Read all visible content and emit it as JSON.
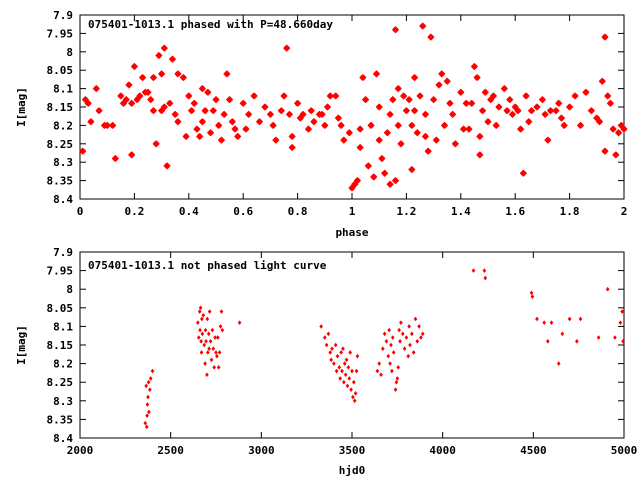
{
  "chart_data": [
    {
      "type": "scatter",
      "title": "075401-1013.1 phased with P=48.660day",
      "xlabel": "phase",
      "ylabel": "I[mag]",
      "xlim": [
        0,
        2
      ],
      "ylim": [
        8.4,
        7.9
      ],
      "y_inverted": true,
      "grid": false,
      "color": "#ff0000",
      "marker": "star",
      "x_ticks": [
        "0",
        "0.2",
        "0.4",
        "0.6",
        "0.8",
        "1",
        "1.2",
        "1.4",
        "1.6",
        "1.8",
        "2"
      ],
      "y_ticks": [
        "7.9",
        "7.95",
        "8",
        "8.05",
        "8.1",
        "8.15",
        "8.2",
        "8.25",
        "8.3",
        "8.35",
        "8.4"
      ],
      "points": [
        [
          0.01,
          8.27
        ],
        [
          0.02,
          8.13
        ],
        [
          0.03,
          8.14
        ],
        [
          0.04,
          8.19
        ],
        [
          0.06,
          8.1
        ],
        [
          0.07,
          8.16
        ],
        [
          0.09,
          8.2
        ],
        [
          0.1,
          8.2
        ],
        [
          0.12,
          8.2
        ],
        [
          0.13,
          8.29
        ],
        [
          0.15,
          8.12
        ],
        [
          0.16,
          8.14
        ],
        [
          0.17,
          8.13
        ],
        [
          0.18,
          8.09
        ],
        [
          0.19,
          8.14
        ],
        [
          0.19,
          8.28
        ],
        [
          0.2,
          8.04
        ],
        [
          0.21,
          8.13
        ],
        [
          0.22,
          8.12
        ],
        [
          0.23,
          8.07
        ],
        [
          0.24,
          8.11
        ],
        [
          0.25,
          8.11
        ],
        [
          0.26,
          8.13
        ],
        [
          0.27,
          8.07
        ],
        [
          0.27,
          8.16
        ],
        [
          0.28,
          8.25
        ],
        [
          0.29,
          8.01
        ],
        [
          0.3,
          8.06
        ],
        [
          0.3,
          8.16
        ],
        [
          0.31,
          7.99
        ],
        [
          0.31,
          8.15
        ],
        [
          0.32,
          8.31
        ],
        [
          0.33,
          8.14
        ],
        [
          0.34,
          8.02
        ],
        [
          0.35,
          8.17
        ],
        [
          0.36,
          8.06
        ],
        [
          0.36,
          8.19
        ],
        [
          0.38,
          8.07
        ],
        [
          0.39,
          8.23
        ],
        [
          0.4,
          8.12
        ],
        [
          0.41,
          8.16
        ],
        [
          0.42,
          8.14
        ],
        [
          0.43,
          8.21
        ],
        [
          0.44,
          8.23
        ],
        [
          0.45,
          8.1
        ],
        [
          0.45,
          8.19
        ],
        [
          0.46,
          8.16
        ],
        [
          0.47,
          8.11
        ],
        [
          0.48,
          8.22
        ],
        [
          0.49,
          8.16
        ],
        [
          0.5,
          8.13
        ],
        [
          0.51,
          8.2
        ],
        [
          0.52,
          8.24
        ],
        [
          0.53,
          8.17
        ],
        [
          0.54,
          8.06
        ],
        [
          0.55,
          8.13
        ],
        [
          0.56,
          8.19
        ],
        [
          0.57,
          8.21
        ],
        [
          0.58,
          8.23
        ],
        [
          0.6,
          8.14
        ],
        [
          0.61,
          8.21
        ],
        [
          0.62,
          8.17
        ],
        [
          0.64,
          8.12
        ],
        [
          0.66,
          8.19
        ],
        [
          0.68,
          8.15
        ],
        [
          0.7,
          8.17
        ],
        [
          0.71,
          8.2
        ],
        [
          0.72,
          8.24
        ],
        [
          0.74,
          8.16
        ],
        [
          0.75,
          8.12
        ],
        [
          0.76,
          7.99
        ],
        [
          0.77,
          8.17
        ],
        [
          0.78,
          8.23
        ],
        [
          0.78,
          8.26
        ],
        [
          0.8,
          8.14
        ],
        [
          0.81,
          8.18
        ],
        [
          0.82,
          8.17
        ],
        [
          0.84,
          8.21
        ],
        [
          0.85,
          8.16
        ],
        [
          0.86,
          8.19
        ],
        [
          0.88,
          8.17
        ],
        [
          0.89,
          8.17
        ],
        [
          0.9,
          8.2
        ],
        [
          0.91,
          8.15
        ],
        [
          0.92,
          8.12
        ],
        [
          0.94,
          8.12
        ],
        [
          0.95,
          8.18
        ],
        [
          0.96,
          8.2
        ],
        [
          0.97,
          8.24
        ],
        [
          0.99,
          8.22
        ],
        [
          1.0,
          8.37
        ],
        [
          1.01,
          8.36
        ],
        [
          1.02,
          8.35
        ],
        [
          1.03,
          8.21
        ],
        [
          1.03,
          8.26
        ],
        [
          1.04,
          8.07
        ],
        [
          1.05,
          8.13
        ],
        [
          1.06,
          8.31
        ],
        [
          1.07,
          8.2
        ],
        [
          1.08,
          8.34
        ],
        [
          1.09,
          8.06
        ],
        [
          1.1,
          8.15
        ],
        [
          1.1,
          8.24
        ],
        [
          1.11,
          8.29
        ],
        [
          1.12,
          8.33
        ],
        [
          1.13,
          8.22
        ],
        [
          1.14,
          8.17
        ],
        [
          1.14,
          8.36
        ],
        [
          1.15,
          8.13
        ],
        [
          1.16,
          7.94
        ],
        [
          1.16,
          8.35
        ],
        [
          1.17,
          8.1
        ],
        [
          1.17,
          8.2
        ],
        [
          1.18,
          8.25
        ],
        [
          1.19,
          8.12
        ],
        [
          1.2,
          8.16
        ],
        [
          1.21,
          8.13
        ],
        [
          1.22,
          8.2
        ],
        [
          1.22,
          8.32
        ],
        [
          1.23,
          8.07
        ],
        [
          1.23,
          8.16
        ],
        [
          1.24,
          8.22
        ],
        [
          1.25,
          8.12
        ],
        [
          1.26,
          7.93
        ],
        [
          1.27,
          8.17
        ],
        [
          1.27,
          8.23
        ],
        [
          1.28,
          8.27
        ],
        [
          1.29,
          7.96
        ],
        [
          1.3,
          8.13
        ],
        [
          1.31,
          8.24
        ],
        [
          1.32,
          8.09
        ],
        [
          1.33,
          8.06
        ],
        [
          1.34,
          8.2
        ],
        [
          1.35,
          8.08
        ],
        [
          1.36,
          8.14
        ],
        [
          1.37,
          8.17
        ],
        [
          1.38,
          8.25
        ],
        [
          1.4,
          8.11
        ],
        [
          1.41,
          8.21
        ],
        [
          1.42,
          8.14
        ],
        [
          1.43,
          8.21
        ],
        [
          1.44,
          8.14
        ],
        [
          1.45,
          8.04
        ],
        [
          1.46,
          8.07
        ],
        [
          1.47,
          8.28
        ],
        [
          1.47,
          8.23
        ],
        [
          1.48,
          8.16
        ],
        [
          1.49,
          8.11
        ],
        [
          1.5,
          8.19
        ],
        [
          1.51,
          8.13
        ],
        [
          1.52,
          8.12
        ],
        [
          1.53,
          8.2
        ],
        [
          1.54,
          8.15
        ],
        [
          1.56,
          8.1
        ],
        [
          1.57,
          8.16
        ],
        [
          1.58,
          8.13
        ],
        [
          1.59,
          8.17
        ],
        [
          1.6,
          8.15
        ],
        [
          1.61,
          8.16
        ],
        [
          1.62,
          8.21
        ],
        [
          1.63,
          8.33
        ],
        [
          1.64,
          8.12
        ],
        [
          1.65,
          8.19
        ],
        [
          1.66,
          8.16
        ],
        [
          1.68,
          8.15
        ],
        [
          1.7,
          8.13
        ],
        [
          1.71,
          8.17
        ],
        [
          1.72,
          8.24
        ],
        [
          1.73,
          8.16
        ],
        [
          1.75,
          8.16
        ],
        [
          1.76,
          8.14
        ],
        [
          1.77,
          8.18
        ],
        [
          1.78,
          8.2
        ],
        [
          1.8,
          8.15
        ],
        [
          1.82,
          8.12
        ],
        [
          1.84,
          8.2
        ],
        [
          1.86,
          8.11
        ],
        [
          1.88,
          8.16
        ],
        [
          1.9,
          8.18
        ],
        [
          1.91,
          8.19
        ],
        [
          1.92,
          8.08
        ],
        [
          1.93,
          7.96
        ],
        [
          1.93,
          8.27
        ],
        [
          1.94,
          8.12
        ],
        [
          1.95,
          8.14
        ],
        [
          1.96,
          8.21
        ],
        [
          1.97,
          8.28
        ],
        [
          1.98,
          8.22
        ],
        [
          1.99,
          8.2
        ],
        [
          2.0,
          8.21
        ]
      ]
    },
    {
      "type": "scatter",
      "title": "075401-1013.1 not phased light curve",
      "xlabel": "hjd0",
      "ylabel": "I[mag]",
      "xlim": [
        2000,
        5000
      ],
      "ylim": [
        8.4,
        7.9
      ],
      "y_inverted": true,
      "grid": false,
      "color": "#ff0000",
      "marker": "diamond",
      "x_ticks": [
        "2000",
        "2500",
        "3000",
        "3500",
        "4000",
        "4500",
        "5000"
      ],
      "y_ticks": [
        "7.9",
        "7.95",
        "8",
        "8.05",
        "8.1",
        "8.15",
        "8.2",
        "8.25",
        "8.3",
        "8.35",
        "8.4"
      ],
      "points": [
        [
          2360,
          8.36
        ],
        [
          2365,
          8.26
        ],
        [
          2368,
          8.37
        ],
        [
          2370,
          8.34
        ],
        [
          2372,
          8.31
        ],
        [
          2375,
          8.29
        ],
        [
          2378,
          8.25
        ],
        [
          2380,
          8.33
        ],
        [
          2385,
          8.27
        ],
        [
          2390,
          8.24
        ],
        [
          2400,
          8.22
        ],
        [
          2650,
          8.09
        ],
        [
          2655,
          8.13
        ],
        [
          2660,
          8.06
        ],
        [
          2662,
          8.11
        ],
        [
          2665,
          8.05
        ],
        [
          2668,
          8.14
        ],
        [
          2670,
          8.17
        ],
        [
          2672,
          8.08
        ],
        [
          2675,
          8.12
        ],
        [
          2680,
          8.07
        ],
        [
          2685,
          8.15
        ],
        [
          2690,
          8.2
        ],
        [
          2692,
          8.11
        ],
        [
          2695,
          8.14
        ],
        [
          2700,
          8.23
        ],
        [
          2702,
          8.08
        ],
        [
          2705,
          8.17
        ],
        [
          2710,
          8.12
        ],
        [
          2712,
          8.16
        ],
        [
          2715,
          8.06
        ],
        [
          2720,
          8.14
        ],
        [
          2725,
          8.19
        ],
        [
          2730,
          8.11
        ],
        [
          2735,
          8.16
        ],
        [
          2740,
          8.21
        ],
        [
          2745,
          8.13
        ],
        [
          2750,
          8.17
        ],
        [
          2755,
          8.18
        ],
        [
          2760,
          8.13
        ],
        [
          2765,
          8.21
        ],
        [
          2770,
          8.17
        ],
        [
          2775,
          8.1
        ],
        [
          2780,
          8.06
        ],
        [
          2785,
          8.11
        ],
        [
          2880,
          8.09
        ],
        [
          3330,
          8.1
        ],
        [
          3350,
          8.13
        ],
        [
          3360,
          8.15
        ],
        [
          3370,
          8.12
        ],
        [
          3380,
          8.17
        ],
        [
          3385,
          8.19
        ],
        [
          3390,
          8.16
        ],
        [
          3400,
          8.2
        ],
        [
          3410,
          8.15
        ],
        [
          3415,
          8.22
        ],
        [
          3420,
          8.18
        ],
        [
          3430,
          8.21
        ],
        [
          3435,
          8.24
        ],
        [
          3440,
          8.17
        ],
        [
          3445,
          8.22
        ],
        [
          3450,
          8.16
        ],
        [
          3455,
          8.25
        ],
        [
          3460,
          8.2
        ],
        [
          3465,
          8.23
        ],
        [
          3470,
          8.19
        ],
        [
          3475,
          8.26
        ],
        [
          3480,
          8.21
        ],
        [
          3485,
          8.24
        ],
        [
          3490,
          8.17
        ],
        [
          3495,
          8.27
        ],
        [
          3500,
          8.22
        ],
        [
          3505,
          8.29
        ],
        [
          3510,
          8.25
        ],
        [
          3515,
          8.3
        ],
        [
          3520,
          8.28
        ],
        [
          3525,
          8.22
        ],
        [
          3530,
          8.18
        ],
        [
          3640,
          8.22
        ],
        [
          3650,
          8.2
        ],
        [
          3660,
          8.23
        ],
        [
          3670,
          8.16
        ],
        [
          3680,
          8.12
        ],
        [
          3690,
          8.14
        ],
        [
          3700,
          8.18
        ],
        [
          3705,
          8.11
        ],
        [
          3710,
          8.2
        ],
        [
          3715,
          8.15
        ],
        [
          3720,
          8.22
        ],
        [
          3725,
          8.13
        ],
        [
          3730,
          8.17
        ],
        [
          3740,
          8.27
        ],
        [
          3745,
          8.25
        ],
        [
          3750,
          8.24
        ],
        [
          3755,
          8.21
        ],
        [
          3760,
          8.11
        ],
        [
          3765,
          8.14
        ],
        [
          3770,
          8.09
        ],
        [
          3780,
          8.12
        ],
        [
          3790,
          8.16
        ],
        [
          3800,
          8.13
        ],
        [
          3810,
          8.18
        ],
        [
          3815,
          8.1
        ],
        [
          3820,
          8.15
        ],
        [
          3830,
          8.12
        ],
        [
          3840,
          8.17
        ],
        [
          3850,
          8.08
        ],
        [
          3860,
          8.14
        ],
        [
          3870,
          8.1
        ],
        [
          3880,
          8.13
        ],
        [
          3890,
          8.12
        ],
        [
          4170,
          7.95
        ],
        [
          4230,
          7.95
        ],
        [
          4235,
          7.97
        ],
        [
          4490,
          8.01
        ],
        [
          4495,
          8.02
        ],
        [
          4520,
          8.08
        ],
        [
          4560,
          8.09
        ],
        [
          4580,
          8.14
        ],
        [
          4600,
          8.09
        ],
        [
          4640,
          8.2
        ],
        [
          4660,
          8.12
        ],
        [
          4700,
          8.08
        ],
        [
          4740,
          8.14
        ],
        [
          4760,
          8.08
        ],
        [
          4860,
          8.13
        ],
        [
          4910,
          8.0
        ],
        [
          4950,
          8.13
        ],
        [
          4980,
          8.09
        ],
        [
          4990,
          8.06
        ],
        [
          4995,
          8.14
        ]
      ]
    }
  ]
}
